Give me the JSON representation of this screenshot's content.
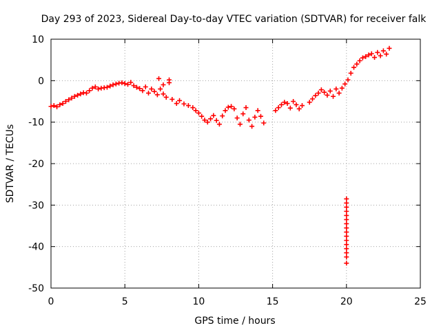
{
  "chart_data": {
    "type": "scatter",
    "title": "Day 293 of 2023, Sidereal Day-to-day VTEC variation (SDTVAR) for receiver falk",
    "xlabel": "GPS time / hours",
    "ylabel": "SDTVAR / TECUs",
    "xlim": [
      0,
      25
    ],
    "ylim": [
      -50,
      10
    ],
    "xticks": [
      0,
      5,
      10,
      15,
      20,
      25
    ],
    "yticks": [
      -50,
      -40,
      -30,
      -20,
      -10,
      0,
      10
    ],
    "grid": true,
    "marker": "+",
    "series": [
      {
        "name": "SDTVAR",
        "color": "#ff0000",
        "x": [
          0.0,
          0.2,
          0.4,
          0.6,
          0.8,
          1.0,
          1.2,
          1.4,
          1.6,
          1.8,
          2.0,
          2.2,
          2.4,
          2.6,
          2.8,
          3.0,
          3.2,
          3.4,
          3.6,
          3.8,
          4.0,
          4.2,
          4.4,
          4.6,
          4.8,
          5.0,
          5.2,
          5.4,
          5.6,
          5.8,
          6.0,
          6.2,
          6.4,
          6.6,
          6.8,
          7.0,
          7.2,
          7.4,
          7.6,
          7.8,
          8.0,
          8.2,
          8.5,
          8.7,
          9.0,
          9.3,
          9.6,
          9.8,
          10.0,
          10.2,
          10.4,
          10.6,
          10.8,
          11.0,
          11.2,
          11.4,
          11.6,
          11.8,
          12.0,
          12.2,
          12.4,
          12.6,
          12.8,
          13.0,
          13.2,
          13.4,
          13.6,
          13.8,
          14.0,
          14.2,
          14.4,
          15.2,
          15.4,
          15.6,
          15.8,
          16.0,
          16.2,
          16.4,
          16.6,
          16.8,
          17.0,
          17.5,
          17.7,
          17.9,
          18.1,
          18.3,
          18.5,
          18.7,
          18.9,
          19.1,
          19.3,
          19.5,
          19.7,
          19.9,
          20.1,
          20.3,
          20.5,
          20.7,
          20.9,
          21.1,
          21.3,
          21.5,
          21.7,
          21.9,
          22.1,
          22.3,
          22.5,
          22.7,
          22.9,
          7.3,
          7.6,
          8.0,
          20.0,
          20.0,
          20.0,
          20.0,
          20.0,
          20.0,
          20.0,
          20.0,
          20.0,
          20.0,
          20.0,
          20.0,
          20.0,
          20.0,
          20.0,
          20.0
        ],
        "y": [
          -6.2,
          -6.0,
          -6.3,
          -5.8,
          -5.5,
          -5.0,
          -4.6,
          -4.2,
          -3.8,
          -3.5,
          -3.2,
          -2.9,
          -3.0,
          -2.4,
          -1.8,
          -1.5,
          -2.0,
          -1.8,
          -1.7,
          -1.6,
          -1.3,
          -1.0,
          -0.8,
          -0.6,
          -0.5,
          -0.7,
          -0.9,
          -0.4,
          -1.2,
          -1.6,
          -1.9,
          -2.4,
          -1.5,
          -3.0,
          -2.0,
          -2.6,
          -3.4,
          -2.0,
          -3.2,
          -4.0,
          -0.5,
          -4.5,
          -5.5,
          -4.8,
          -5.6,
          -6.0,
          -6.5,
          -7.2,
          -7.8,
          -8.6,
          -9.5,
          -10.0,
          -9.2,
          -8.4,
          -9.6,
          -10.5,
          -8.5,
          -7.2,
          -6.4,
          -6.2,
          -6.8,
          -9.0,
          -10.5,
          -8.0,
          -6.5,
          -9.5,
          -11.0,
          -8.8,
          -7.2,
          -8.6,
          -10.2,
          -7.2,
          -6.5,
          -5.8,
          -5.2,
          -5.5,
          -6.6,
          -5.0,
          -5.8,
          -6.8,
          -6.0,
          -5.2,
          -4.4,
          -3.6,
          -3.0,
          -2.2,
          -2.8,
          -3.5,
          -2.5,
          -3.8,
          -2.0,
          -3.0,
          -1.8,
          -0.8,
          0.2,
          1.8,
          3.2,
          4.0,
          4.8,
          5.5,
          5.8,
          6.2,
          6.5,
          5.6,
          6.8,
          6.0,
          7.2,
          6.4,
          7.8,
          0.5,
          -1.0,
          0.2,
          -28.5,
          -29.5,
          -30.5,
          -31.5,
          -32.5,
          -33.5,
          -34.5,
          -35.5,
          -36.5,
          -37.5,
          -38.5,
          -39.5,
          -40.5,
          -41.5,
          -42.5,
          -44.0
        ]
      }
    ]
  }
}
